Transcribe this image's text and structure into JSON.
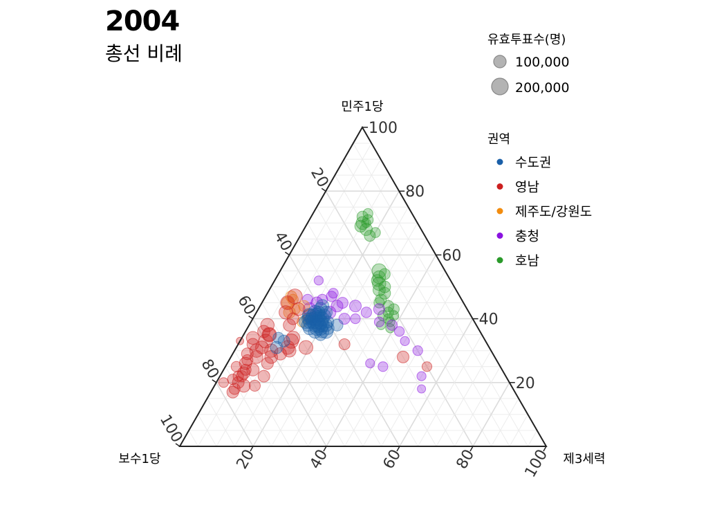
{
  "title": "2004",
  "subtitle": "총선 비례",
  "chart_data": {
    "type": "ternary-scatter",
    "axes": {
      "top": "민주1당",
      "left": "보수1당",
      "right": "제3세력"
    },
    "ticks": [
      "20",
      "40",
      "60",
      "80",
      "100"
    ],
    "size_legend": {
      "title": "유효투표수(명)",
      "entries": [
        {
          "label": "100,000",
          "value": 100000
        },
        {
          "label": "200,000",
          "value": 200000
        }
      ]
    },
    "color_legend": {
      "title": "권역",
      "entries": [
        {
          "label": "수도권",
          "color": "#1a5fa8"
        },
        {
          "label": "영남",
          "color": "#cc1f1f"
        },
        {
          "label": "제주도/강원도",
          "color": "#f28c0f"
        },
        {
          "label": "충청",
          "color": "#8a12e0"
        },
        {
          "label": "호남",
          "color": "#2a9a2a"
        }
      ]
    },
    "series": [
      {
        "name": "호남",
        "color": "#2a9a2a",
        "points": [
          [
            72,
            14,
            14,
            90000
          ],
          [
            70,
            15,
            15,
            120000
          ],
          [
            71,
            13,
            16,
            80000
          ],
          [
            69,
            16,
            15,
            100000
          ],
          [
            73,
            12,
            15,
            70000
          ],
          [
            68,
            15,
            17,
            110000
          ],
          [
            66,
            15,
            19,
            90000
          ],
          [
            70,
            14,
            16,
            60000
          ],
          [
            67,
            13,
            20,
            75000
          ],
          [
            55,
            18,
            27,
            150000
          ],
          [
            53,
            19,
            28,
            120000
          ],
          [
            52,
            20,
            28,
            100000
          ],
          [
            54,
            17,
            29,
            90000
          ],
          [
            51,
            20,
            29,
            130000
          ],
          [
            49,
            21,
            30,
            110000
          ],
          [
            48,
            20,
            32,
            100000
          ],
          [
            44,
            21,
            35,
            90000
          ],
          [
            42,
            22,
            36,
            80000
          ],
          [
            40,
            23,
            37,
            70000
          ],
          [
            43,
            20,
            37,
            85000
          ],
          [
            41,
            24,
            35,
            75000
          ],
          [
            39,
            23,
            38,
            65000
          ],
          [
            37,
            24,
            39,
            60000
          ],
          [
            46,
            22,
            32,
            90000
          ],
          [
            50,
            19,
            31,
            100000
          ],
          [
            45,
            23,
            32,
            80000
          ],
          [
            41,
            21,
            38,
            70000
          ],
          [
            38,
            26,
            36,
            60000
          ]
        ]
      },
      {
        "name": "충청",
        "color": "#8a12e0",
        "points": [
          [
            52,
            36,
            12,
            60000
          ],
          [
            48,
            34,
            18,
            70000
          ],
          [
            46,
            38,
            16,
            80000
          ],
          [
            45,
            33,
            22,
            90000
          ],
          [
            44,
            30,
            26,
            100000
          ],
          [
            42,
            28,
            30,
            80000
          ],
          [
            40,
            32,
            28,
            70000
          ],
          [
            43,
            24,
            33,
            90000
          ],
          [
            39,
            26,
            35,
            70000
          ],
          [
            38,
            23,
            39,
            80000
          ],
          [
            36,
            22,
            42,
            70000
          ],
          [
            33,
            22,
            45,
            60000
          ],
          [
            30,
            20,
            50,
            70000
          ],
          [
            26,
            35,
            39,
            60000
          ],
          [
            25,
            32,
            43,
            70000
          ],
          [
            22,
            23,
            55,
            60000
          ],
          [
            18,
            25,
            57,
            50000
          ],
          [
            46,
            42,
            12,
            80000
          ],
          [
            45,
            40,
            15,
            100000
          ],
          [
            42,
            38,
            20,
            110000
          ],
          [
            40,
            35,
            25,
            90000
          ],
          [
            44,
            35,
            21,
            100000
          ],
          [
            47,
            35,
            18,
            80000
          ],
          [
            41,
            42,
            17,
            90000
          ],
          [
            43,
            43,
            14,
            120000
          ]
        ]
      },
      {
        "name": "제주도/강원도",
        "color": "#f28c0f",
        "points": [
          [
            47,
            46,
            7,
            90000
          ],
          [
            46,
            46,
            8,
            80000
          ],
          [
            44,
            44,
            12,
            90000
          ],
          [
            43,
            47,
            10,
            80000
          ],
          [
            45,
            48,
            7,
            100000
          ],
          [
            40,
            45,
            15,
            70000
          ],
          [
            39,
            47,
            14,
            80000
          ],
          [
            42,
            49,
            9,
            100000
          ]
        ]
      },
      {
        "name": "영남",
        "color": "#cc1f1f",
        "points": [
          [
            22,
            72,
            6,
            90000
          ],
          [
            20,
            74,
            6,
            100000
          ],
          [
            18,
            76,
            6,
            90000
          ],
          [
            21,
            75,
            4,
            80000
          ],
          [
            19,
            73,
            8,
            120000
          ],
          [
            23,
            71,
            6,
            110000
          ],
          [
            17,
            77,
            6,
            100000
          ],
          [
            24,
            70,
            6,
            90000
          ],
          [
            22,
            73,
            5,
            80000
          ],
          [
            20,
            78,
            2,
            70000
          ],
          [
            26,
            69,
            5,
            110000
          ],
          [
            29,
            67,
            4,
            100000
          ],
          [
            28,
            65,
            7,
            120000
          ],
          [
            30,
            64,
            6,
            130000
          ],
          [
            31,
            62,
            7,
            120000
          ],
          [
            33,
            60,
            7,
            140000
          ],
          [
            35,
            58,
            7,
            150000
          ],
          [
            38,
            57,
            5,
            130000
          ],
          [
            34,
            63,
            3,
            120000
          ],
          [
            36,
            59,
            5,
            110000
          ],
          [
            32,
            64,
            4,
            100000
          ],
          [
            27,
            68,
            5,
            90000
          ],
          [
            25,
            72,
            3,
            80000
          ],
          [
            30,
            60,
            10,
            130000
          ],
          [
            28,
            61,
            11,
            120000
          ],
          [
            29,
            58,
            13,
            110000
          ],
          [
            31,
            55,
            14,
            140000
          ],
          [
            33,
            53,
            14,
            150000
          ],
          [
            34,
            52,
            14,
            130000
          ],
          [
            30,
            55,
            15,
            120000
          ],
          [
            47,
            45,
            8,
            160000
          ],
          [
            45,
            48,
            7,
            140000
          ],
          [
            42,
            50,
            8,
            130000
          ],
          [
            43,
            46,
            11,
            120000
          ],
          [
            41,
            44,
            15,
            110000
          ],
          [
            32,
            39,
            29,
            90000
          ],
          [
            28,
            25,
            47,
            100000
          ],
          [
            25,
            20,
            55,
            70000
          ],
          [
            31,
            50,
            19,
            140000
          ],
          [
            38,
            51,
            11,
            110000
          ],
          [
            40,
            49,
            11,
            100000
          ],
          [
            34,
            69,
            -3,
            40000
          ],
          [
            35,
            58,
            7,
            120000
          ],
          [
            22,
            66,
            12,
            100000
          ],
          [
            24,
            68,
            8,
            110000
          ],
          [
            19,
            70,
            11,
            90000
          ],
          [
            26,
            63,
            11,
            100000
          ]
        ]
      },
      {
        "name": "수도권",
        "color": "#1a5fa8",
        "points": [
          [
            39,
            44,
            17,
            140000
          ],
          [
            40,
            43,
            17,
            150000
          ],
          [
            38,
            44,
            18,
            130000
          ],
          [
            41,
            42,
            17,
            160000
          ],
          [
            39,
            42,
            19,
            150000
          ],
          [
            37,
            43,
            20,
            140000
          ],
          [
            40,
            41,
            19,
            130000
          ],
          [
            38,
            41,
            21,
            120000
          ],
          [
            41,
            44,
            15,
            150000
          ],
          [
            42,
            42,
            16,
            140000
          ],
          [
            36,
            45,
            19,
            130000
          ],
          [
            39,
            45,
            16,
            120000
          ],
          [
            37,
            41,
            22,
            110000
          ],
          [
            40,
            45,
            15,
            100000
          ],
          [
            41,
            43,
            16,
            130000
          ],
          [
            38,
            43,
            19,
            160000
          ],
          [
            39,
            43,
            18,
            140000
          ],
          [
            37,
            46,
            17,
            120000
          ],
          [
            40,
            42,
            18,
            120000
          ],
          [
            42,
            41,
            17,
            110000
          ],
          [
            36,
            43,
            21,
            120000
          ],
          [
            38,
            46,
            16,
            110000
          ],
          [
            39,
            40,
            21,
            100000
          ],
          [
            43,
            40,
            17,
            130000
          ],
          [
            44,
            39,
            17,
            120000
          ],
          [
            42,
            39,
            19,
            110000
          ],
          [
            41,
            41,
            18,
            100000
          ],
          [
            35,
            44,
            21,
            100000
          ],
          [
            38,
            38,
            24,
            100000
          ],
          [
            31,
            58,
            11,
            110000
          ],
          [
            33,
            55,
            12,
            100000
          ],
          [
            34,
            56,
            10,
            90000
          ],
          [
            40,
            44,
            16,
            110000
          ],
          [
            37,
            44,
            19,
            150000
          ],
          [
            39,
            46,
            15,
            130000
          ],
          [
            41,
            40,
            19,
            120000
          ],
          [
            36,
            42,
            22,
            140000
          ],
          [
            38,
            42,
            20,
            130000
          ]
        ]
      }
    ]
  }
}
